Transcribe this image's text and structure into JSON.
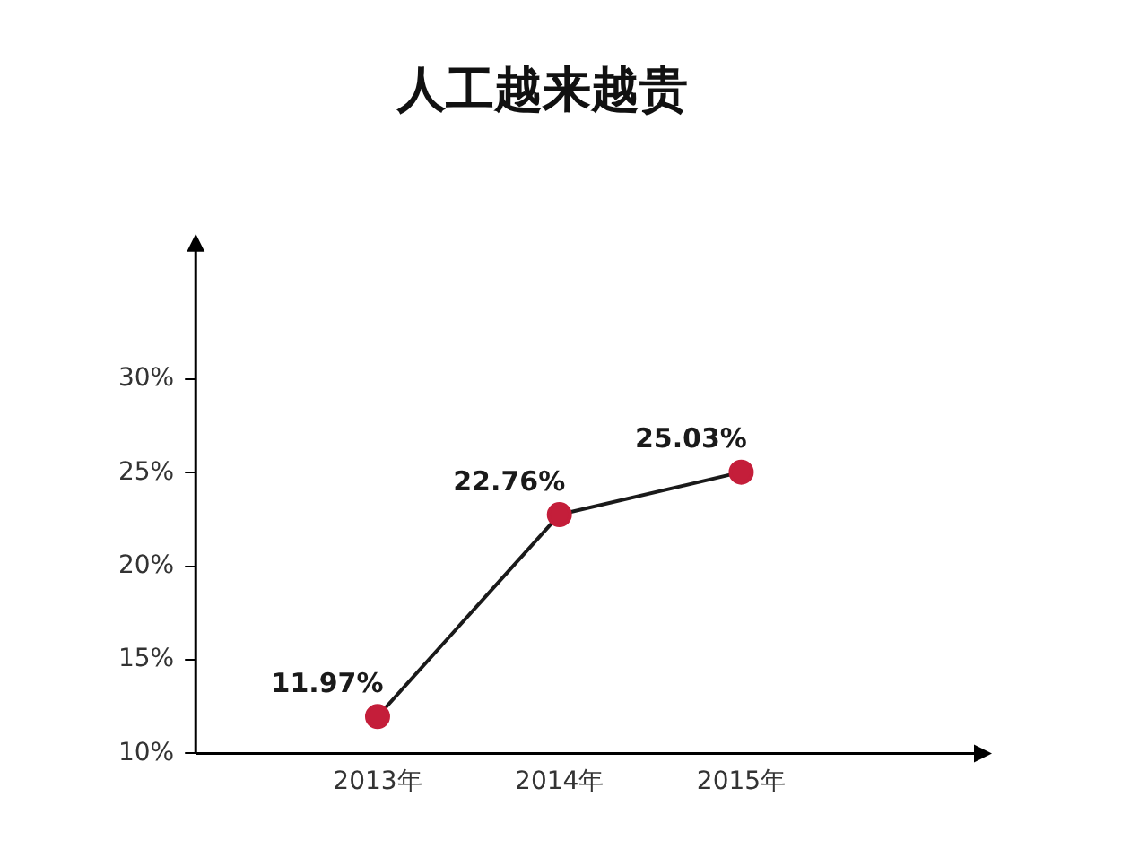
{
  "chart_data": {
    "type": "line",
    "title": "人工越来越贵",
    "categories": [
      "2013年",
      "2014年",
      "2015年"
    ],
    "series": [
      {
        "color": "#c41e3a",
        "values": [
          11.97,
          22.76,
          25.03
        ],
        "value_labels": [
          "11.97%",
          "22.76%",
          "25.03%"
        ]
      }
    ],
    "ylim": [
      10,
      37
    ],
    "yticks": [
      {
        "value": 10,
        "label": "10%"
      },
      {
        "value": 15,
        "label": "15%"
      },
      {
        "value": 20,
        "label": "20%"
      },
      {
        "value": 25,
        "label": "25%"
      },
      {
        "value": 30,
        "label": "30%"
      }
    ],
    "grid": false,
    "legend": false,
    "marker": "circle",
    "line_style": "solid"
  }
}
